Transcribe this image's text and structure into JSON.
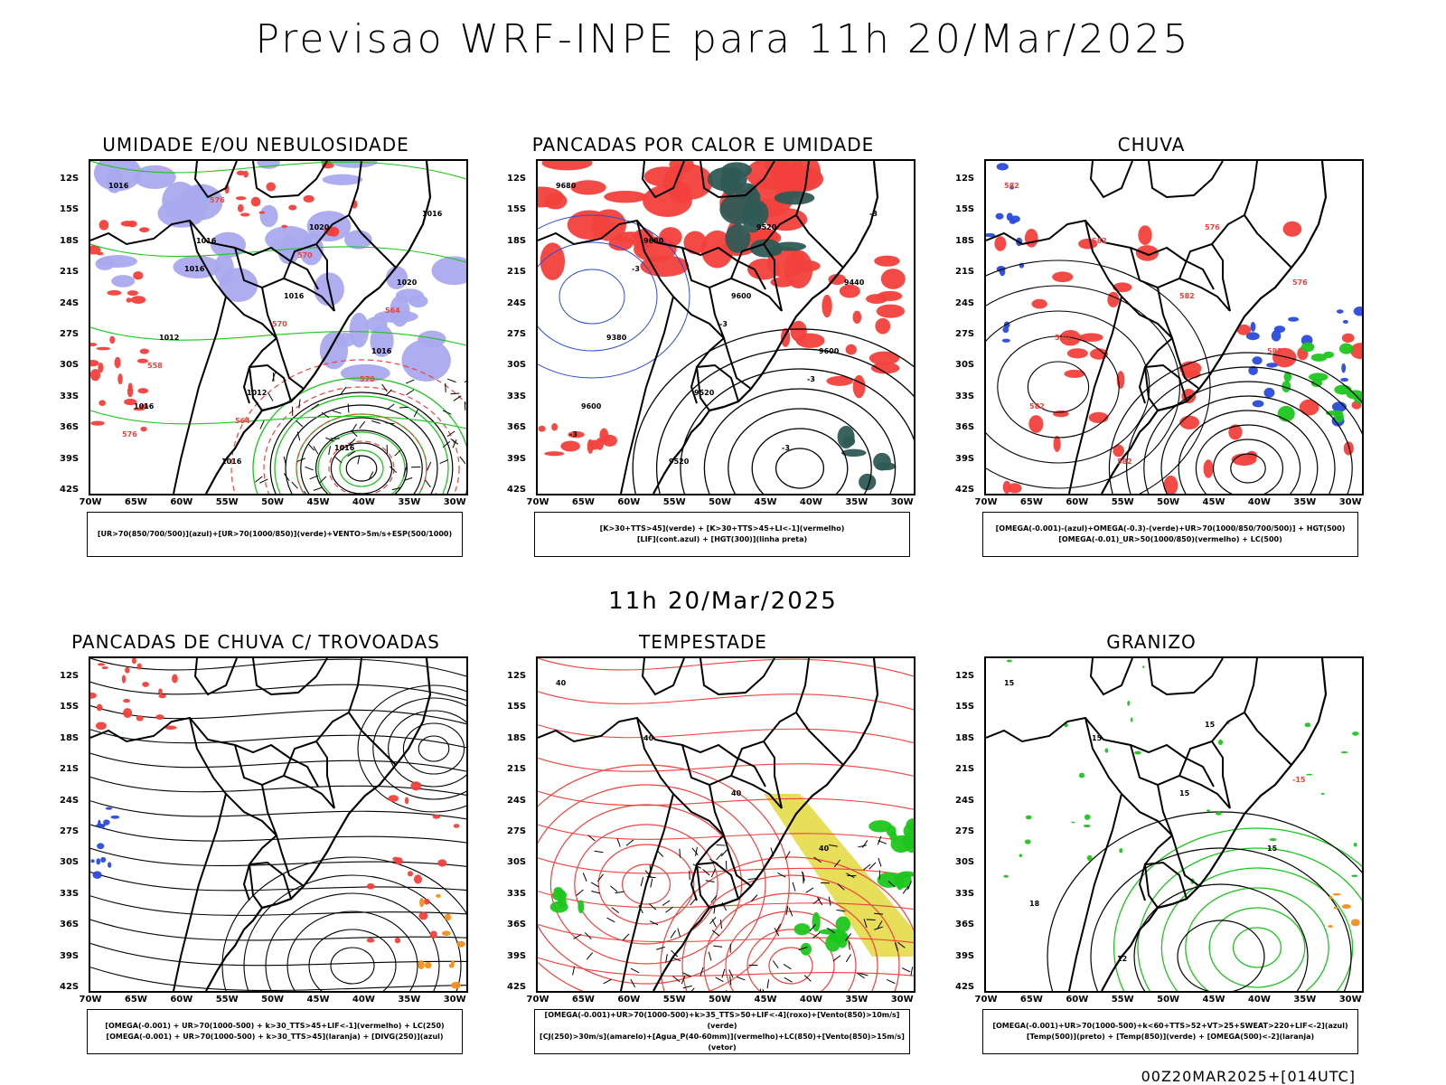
{
  "title": "Previsao WRF-INPE  para 11h 20/Mar/2025",
  "mid_title": "11h 20/Mar/2025",
  "footer": "00Z20MAR2025+[014UTC]",
  "lat_labels": [
    "12S",
    "15S",
    "18S",
    "21S",
    "24S",
    "27S",
    "30S",
    "33S",
    "36S",
    "39S",
    "42S"
  ],
  "lon_labels": [
    "70W",
    "65W",
    "60W",
    "55W",
    "50W",
    "45W",
    "40W",
    "35W",
    "30W"
  ],
  "colors": {
    "red": "#f2403c",
    "blue": "#2a4bdc",
    "green": "#1cc61c",
    "lavender": "#a9a9ee",
    "darkteal": "#2f5a55",
    "yellow": "#e3d83c",
    "orange": "#f2901c"
  },
  "panels": [
    {
      "title": "UMIDADE E/OU NEBULOSIDADE",
      "legend": [
        "[UR>70(850/700/500)](azul)+[UR>70(1000/850)](verde)+VENTO>5m/s+ESP(500/1000)"
      ],
      "contour_labels": [
        "1016",
        "1016",
        "1016",
        "1016",
        "1016",
        "1016",
        "1020",
        "1020",
        "1012",
        "1012",
        "1016",
        "1016",
        "1016",
        "570",
        "570",
        "576",
        "576",
        "570",
        "564",
        "558",
        "564"
      ]
    },
    {
      "title": "PANCADAS POR CALOR E UMIDADE",
      "legend": [
        "[K>30+TTS>45](verde) + [K>30+TTS>45+LI<-1](vermelho)",
        "[LIF](cont.azul) + [HGT(300)](linha preta)"
      ],
      "contour_labels": [
        "9680",
        "9680",
        "9600",
        "9600",
        "9600",
        "9520",
        "9520",
        "9440",
        "9380",
        "9520",
        "-3",
        "-3",
        "-3",
        "-3",
        "-3",
        "-3"
      ]
    },
    {
      "title": "CHUVA",
      "legend": [
        "[OMEGA(-0.001)-(azul)+OMEGA(-0.3)-(verde)+UR>70(1000/850/700/500)] + HGT(500)",
        "[OMEGA(-0.01)_UR>50(1000/850)(vermelho) + LC(500)"
      ],
      "contour_labels": [
        "582",
        "582",
        "582",
        "582",
        "582",
        "582",
        "576",
        "576",
        "570"
      ]
    },
    {
      "title": "PANCADAS DE CHUVA C/ TROVOADAS",
      "legend": [
        "[OMEGA(-0.001) + UR>70(1000-500) + k>30_TTS>45+LIF<-1](vermelho) + LC(250)",
        "[OMEGA(-0.001) + UR>70(1000-500) + k>30_TTS>45](laranja) + [DIVG(250)](azul)"
      ],
      "contour_labels": []
    },
    {
      "title": "TEMPESTADE",
      "legend": [
        "[OMEGA(-0.001)+UR>70(1000-500)+k>35_TTS>50+LIF<-4](roxo)+[Vento(850)>10m/s](verde)",
        "[CJ(250)>30m/s](amarelo)+[Agua_P(40-60mm)](vermelho)+LC(850)+[Vento(850)>15m/s](vetor)"
      ],
      "contour_labels": [
        "40",
        "40",
        "40",
        "40"
      ]
    },
    {
      "title": "GRANIZO",
      "legend": [
        "[OMEGA(-0.001)+UR>70(1000-500)+k<60+TTS>52+VT>25+SWEAT>220+LIF<-2](azul)",
        "[Temp(500)](preto) + [Temp(850)](verde) + [OMEGA(500)<-2](laranja)"
      ],
      "contour_labels": [
        "15",
        "15",
        "15",
        "15",
        "18",
        "12",
        "15",
        "-15"
      ]
    }
  ]
}
